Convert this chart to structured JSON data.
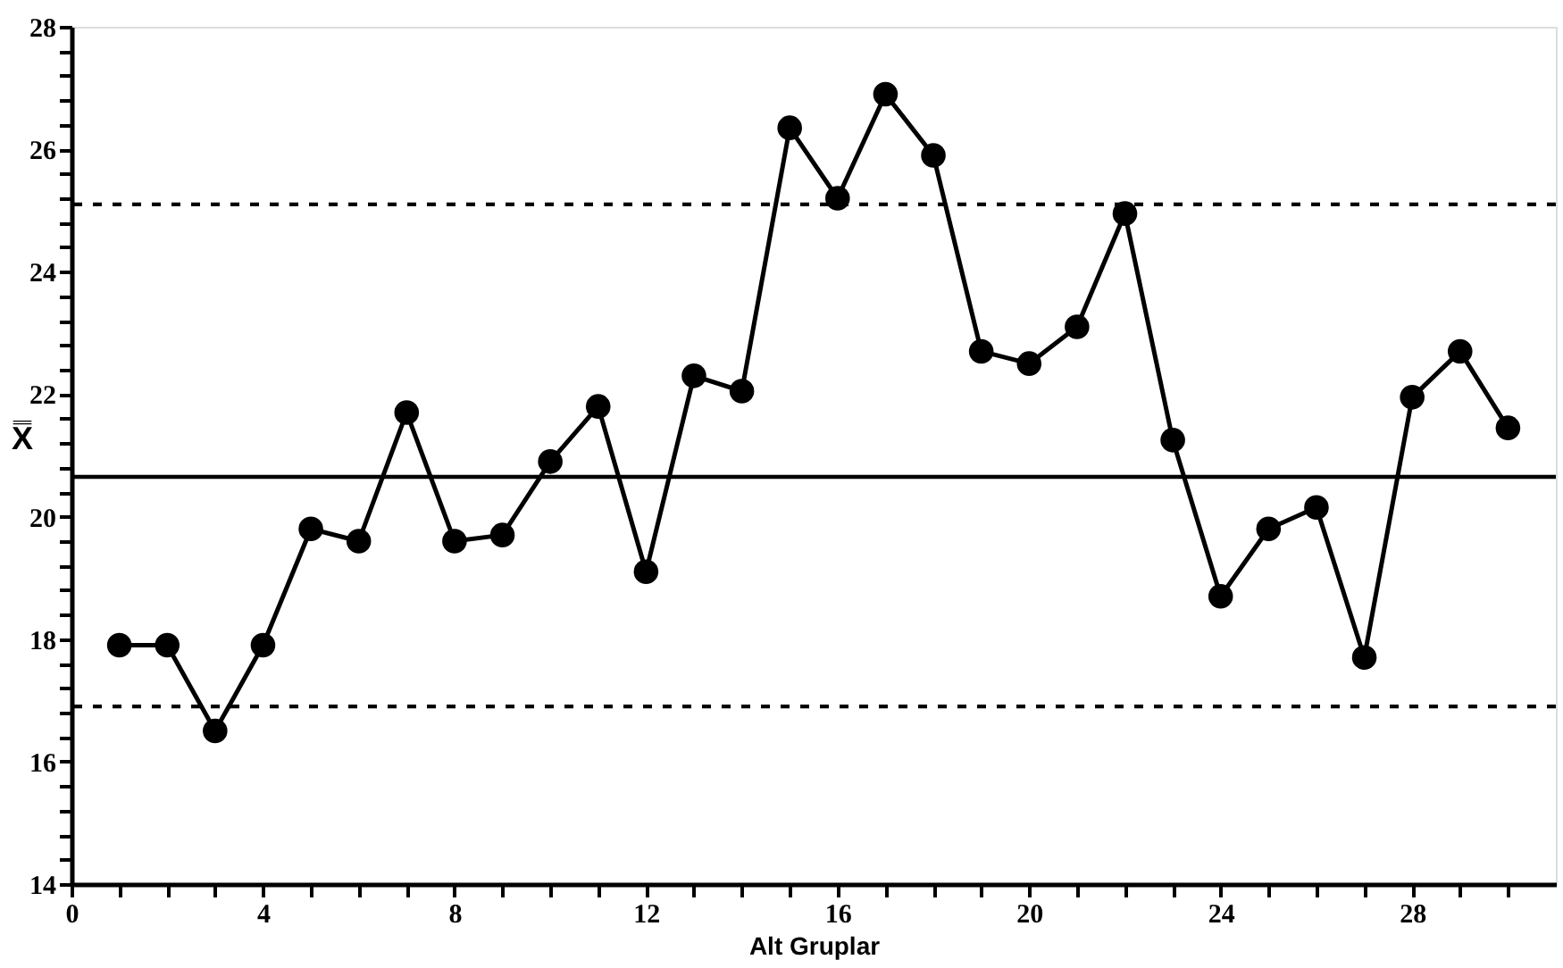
{
  "chart_data": {
    "type": "line",
    "xlabel": "Alt Gruplar",
    "ylabel": "X̿",
    "x": [
      1,
      2,
      3,
      4,
      5,
      6,
      7,
      8,
      9,
      10,
      11,
      12,
      13,
      14,
      15,
      16,
      17,
      18,
      19,
      20,
      21,
      22,
      23,
      24,
      25,
      26,
      27,
      28,
      29,
      30
    ],
    "series": [
      {
        "color": "#000000",
        "values": [
          17.9,
          17.9,
          16.5,
          17.9,
          19.8,
          19.6,
          21.7,
          19.6,
          19.7,
          20.9,
          21.8,
          19.1,
          22.3,
          22.05,
          26.35,
          25.2,
          26.9,
          25.9,
          22.7,
          22.5,
          23.1,
          24.95,
          21.25,
          18.7,
          19.8,
          20.15,
          17.7,
          21.95,
          22.7,
          21.45
        ]
      }
    ],
    "xlim": [
      0,
      31
    ],
    "ylim": [
      14,
      28
    ],
    "xticks": [
      0,
      {
        "value": 1,
        "label": null
      },
      {
        "value": 2,
        "label": null
      },
      {
        "value": 3,
        "label": null
      },
      4,
      {
        "value": 5,
        "label": null
      },
      {
        "value": 6,
        "label": null
      },
      {
        "value": 7,
        "label": null
      },
      8,
      {
        "value": 9,
        "label": null
      },
      {
        "value": 10,
        "label": null
      },
      {
        "value": 11,
        "label": null
      },
      12,
      {
        "value": 13,
        "label": null
      },
      {
        "value": 14,
        "label": null
      },
      {
        "value": 15,
        "label": null
      },
      16,
      {
        "value": 17,
        "label": null
      },
      {
        "value": 18,
        "label": null
      },
      {
        "value": 19,
        "label": null
      },
      20,
      {
        "value": 21,
        "label": null
      },
      {
        "value": 22,
        "label": null
      },
      {
        "value": 23,
        "label": null
      },
      24,
      {
        "value": 25,
        "label": null
      },
      {
        "value": 26,
        "label": null
      },
      {
        "value": 27,
        "label": null
      },
      28,
      {
        "value": 29,
        "label": null
      },
      {
        "value": 30,
        "label": null
      }
    ],
    "yticks": [
      14,
      {
        "value": 14.4,
        "label": null
      },
      {
        "value": 14.8,
        "label": null
      },
      {
        "value": 15.2,
        "label": null
      },
      {
        "value": 15.6,
        "label": null
      },
      16,
      {
        "value": 16.4,
        "label": null
      },
      {
        "value": 16.8,
        "label": null
      },
      {
        "value": 17.2,
        "label": null
      },
      {
        "value": 17.6,
        "label": null
      },
      18,
      {
        "value": 18.4,
        "label": null
      },
      {
        "value": 18.8,
        "label": null
      },
      {
        "value": 19.2,
        "label": null
      },
      {
        "value": 19.6,
        "label": null
      },
      20,
      {
        "value": 20.4,
        "label": null
      },
      {
        "value": 20.8,
        "label": null
      },
      {
        "value": 21.2,
        "label": null
      },
      {
        "value": 21.6,
        "label": null
      },
      22,
      {
        "value": 22.4,
        "label": null
      },
      {
        "value": 22.8,
        "label": null
      },
      {
        "value": 23.2,
        "label": null
      },
      {
        "value": 23.6,
        "label": null
      },
      24,
      {
        "value": 24.4,
        "label": null
      },
      {
        "value": 24.8,
        "label": null
      },
      {
        "value": 25.2,
        "label": null
      },
      {
        "value": 25.6,
        "label": null
      },
      26,
      {
        "value": 26.4,
        "label": null
      },
      {
        "value": 26.8,
        "label": null
      },
      {
        "value": 27.2,
        "label": null
      },
      {
        "value": 27.6,
        "label": null
      },
      28
    ],
    "ref_lines": [
      {
        "axis": "y",
        "value": 25.1,
        "line_style": "dashed"
      },
      {
        "axis": "y",
        "value": 20.65,
        "line_style": "solid"
      },
      {
        "axis": "y",
        "value": 16.9,
        "line_style": "dashed"
      }
    ],
    "grid": false,
    "marker": "circle",
    "line_style": "solid"
  }
}
